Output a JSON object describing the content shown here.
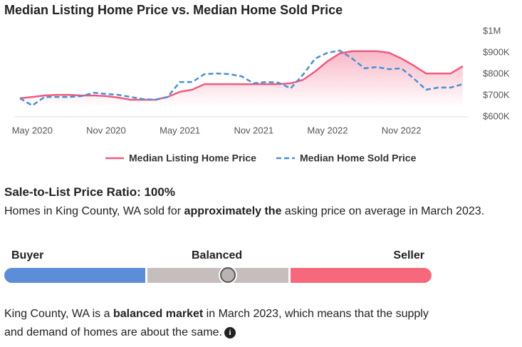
{
  "chart_data": {
    "type": "line",
    "title": "Median Listing Home Price vs. Median Home Sold Price",
    "x": [
      "2020-04",
      "2020-05",
      "2020-06",
      "2020-07",
      "2020-08",
      "2020-09",
      "2020-10",
      "2020-11",
      "2020-12",
      "2021-01",
      "2021-02",
      "2021-03",
      "2021-04",
      "2021-05",
      "2021-06",
      "2021-07",
      "2021-08",
      "2021-09",
      "2021-10",
      "2021-11",
      "2021-12",
      "2022-01",
      "2022-02",
      "2022-03",
      "2022-04",
      "2022-05",
      "2022-06",
      "2022-07",
      "2022-08",
      "2022-09",
      "2022-10",
      "2022-11",
      "2022-12",
      "2023-01",
      "2023-02",
      "2023-03",
      "2023-04"
    ],
    "series": [
      {
        "name": "Median Listing Home Price",
        "color": "#ef5b7f",
        "style": "solid",
        "fill": true,
        "values": [
          687000,
          693000,
          700000,
          703000,
          703000,
          700000,
          700000,
          697000,
          690000,
          680000,
          680000,
          680000,
          693000,
          717000,
          727000,
          753000,
          753000,
          753000,
          753000,
          753000,
          753000,
          753000,
          757000,
          773000,
          813000,
          860000,
          897000,
          907000,
          907000,
          907000,
          900000,
          873000,
          840000,
          803000,
          803000,
          803000,
          837000
        ]
      },
      {
        "name": "Median Home Sold Price",
        "color": "#4a8fd4",
        "style": "dashed",
        "fill": false,
        "values": [
          687000,
          653000,
          693000,
          693000,
          693000,
          697000,
          713000,
          707000,
          703000,
          693000,
          683000,
          680000,
          693000,
          763000,
          763000,
          800000,
          803000,
          800000,
          790000,
          757000,
          763000,
          760000,
          733000,
          797000,
          873000,
          900000,
          910000,
          873000,
          827000,
          833000,
          823000,
          827000,
          780000,
          727000,
          737000,
          737000,
          753000
        ]
      }
    ],
    "ylim": [
      600000,
      1000000
    ],
    "yticks": [
      {
        "value": 600000,
        "label": "$600K"
      },
      {
        "value": 700000,
        "label": "$700K"
      },
      {
        "value": 800000,
        "label": "$800K"
      },
      {
        "value": 900000,
        "label": "$900K"
      },
      {
        "value": 1000000,
        "label": "$1M"
      }
    ],
    "xticks": [
      {
        "value": "2020-05",
        "label": "May 2020"
      },
      {
        "value": "2020-11",
        "label": "Nov 2020"
      },
      {
        "value": "2021-05",
        "label": "May 2021"
      },
      {
        "value": "2021-11",
        "label": "Nov 2021"
      },
      {
        "value": "2022-05",
        "label": "May 2022"
      },
      {
        "value": "2022-11",
        "label": "Nov 2022"
      }
    ]
  },
  "ratio": {
    "title": "Sale-to-List Price Ratio: 100%",
    "text": [
      "Homes in King County, WA sold for ",
      "approximately the",
      " asking price on average in March 2023."
    ]
  },
  "market_bar": {
    "labels": [
      "Buyer",
      "Balanced",
      "Seller"
    ]
  },
  "summary": [
    "King County, WA is a ",
    "balanced market",
    " in March 2023, which means that the supply and demand of homes are about the same."
  ]
}
